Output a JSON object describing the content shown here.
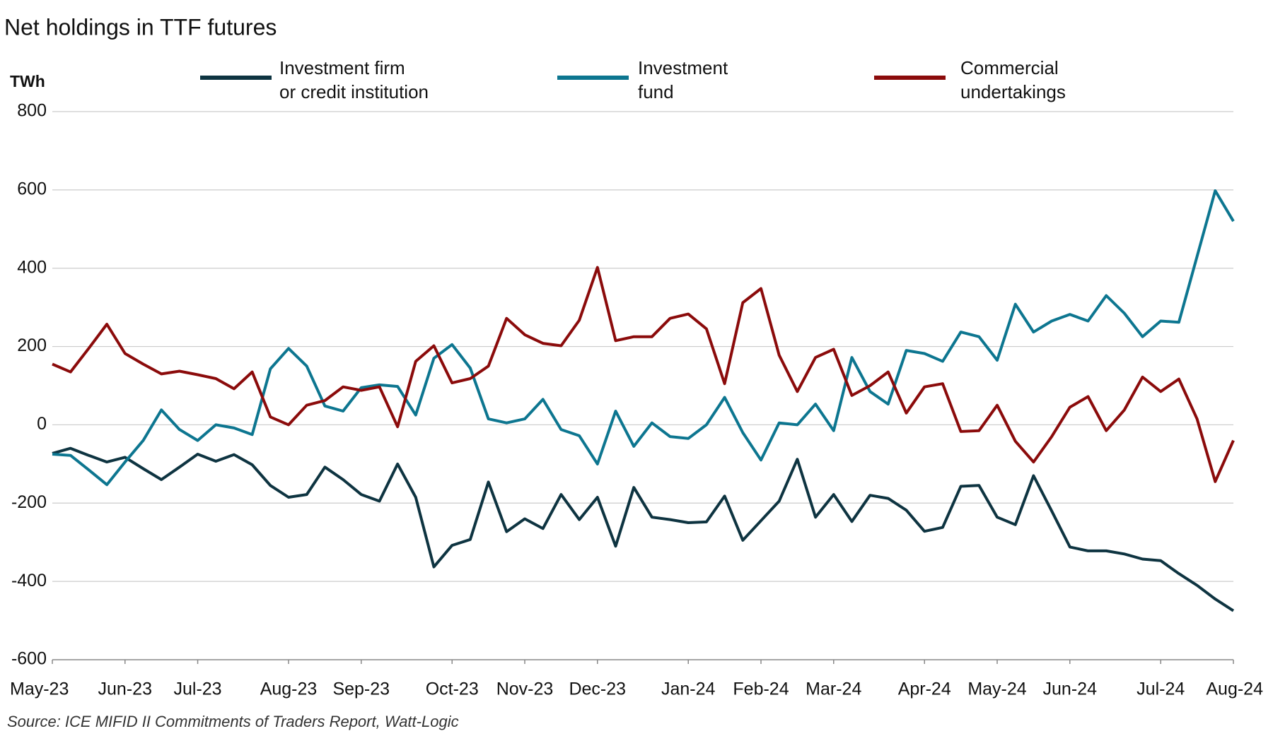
{
  "chart_data": {
    "type": "line",
    "title": "Net holdings in TTF futures",
    "y_label": "TWh",
    "source": "Source: ICE MIFID II Commitments of Traders Report, Watt-Logic",
    "categories": [
      "May-23",
      null,
      null,
      null,
      "Jun-23",
      null,
      null,
      null,
      "Jul-23",
      null,
      null,
      null,
      null,
      "Aug-23",
      null,
      null,
      null,
      "Sep-23",
      null,
      null,
      null,
      null,
      "Oct-23",
      null,
      null,
      null,
      "Nov-23",
      null,
      null,
      null,
      "Dec-23",
      null,
      null,
      null,
      null,
      "Jan-24",
      null,
      null,
      null,
      "Feb-24",
      null,
      null,
      null,
      "Mar-24",
      null,
      null,
      null,
      null,
      "Apr-24",
      null,
      null,
      null,
      "May-24",
      null,
      null,
      null,
      "Jun-24",
      null,
      null,
      null,
      null,
      "Jul-24",
      null,
      null,
      null,
      "Aug-24"
    ],
    "series": [
      {
        "name": "Investment firm\nor credit institution",
        "color": "#0e3441",
        "values": [
          -73,
          -60,
          -78,
          -95,
          -83,
          -112,
          -140,
          -108,
          -75,
          -93,
          -76,
          -102,
          -155,
          -185,
          -178,
          -108,
          -140,
          -178,
          -195,
          -100,
          -185,
          -363,
          -308,
          -293,
          -146,
          -273,
          -240,
          -265,
          -178,
          -242,
          -185,
          -310,
          -160,
          -236,
          -242,
          -250,
          -248,
          -182,
          -295,
          -245,
          -195,
          -88,
          -236,
          -178,
          -247,
          -180,
          -188,
          -218,
          -272,
          -262,
          -157,
          -155,
          -236,
          -255,
          -130,
          -220,
          -312,
          -322,
          -322,
          -330,
          -343,
          -347,
          -380,
          -410,
          -445,
          -475
        ]
      },
      {
        "name": "Investment\nfund",
        "color": "#0d7690",
        "values": [
          -75,
          -78,
          -115,
          -153,
          -95,
          -40,
          38,
          -12,
          -40,
          0,
          -8,
          -25,
          143,
          195,
          150,
          48,
          35,
          95,
          102,
          98,
          25,
          170,
          205,
          145,
          15,
          5,
          15,
          65,
          -12,
          -28,
          -100,
          35,
          -55,
          5,
          -30,
          -35,
          0,
          70,
          -20,
          -90,
          5,
          0,
          53,
          -15,
          172,
          85,
          53,
          190,
          182,
          162,
          237,
          225,
          165,
          308,
          237,
          265,
          282,
          265,
          330,
          285,
          225,
          265,
          262,
          430,
          598,
          520
        ]
      },
      {
        "name": "Commercial\nundertakings",
        "color": "#8b0b0b",
        "values": [
          155,
          135,
          195,
          257,
          182,
          155,
          130,
          137,
          128,
          118,
          92,
          135,
          20,
          0,
          50,
          62,
          97,
          88,
          97,
          -5,
          162,
          202,
          107,
          118,
          150,
          272,
          230,
          208,
          202,
          267,
          402,
          215,
          225,
          225,
          272,
          283,
          245,
          105,
          312,
          348,
          178,
          85,
          172,
          193,
          75,
          100,
          135,
          30,
          97,
          105,
          -17,
          -15,
          50,
          -42,
          -95,
          -30,
          45,
          72,
          -15,
          38,
          122,
          85,
          117,
          15,
          -145,
          -40
        ]
      }
    ],
    "ylim": [
      -600,
      800
    ],
    "yticks": [
      -600,
      -400,
      -200,
      0,
      200,
      400,
      600,
      800
    ],
    "grid": true
  }
}
